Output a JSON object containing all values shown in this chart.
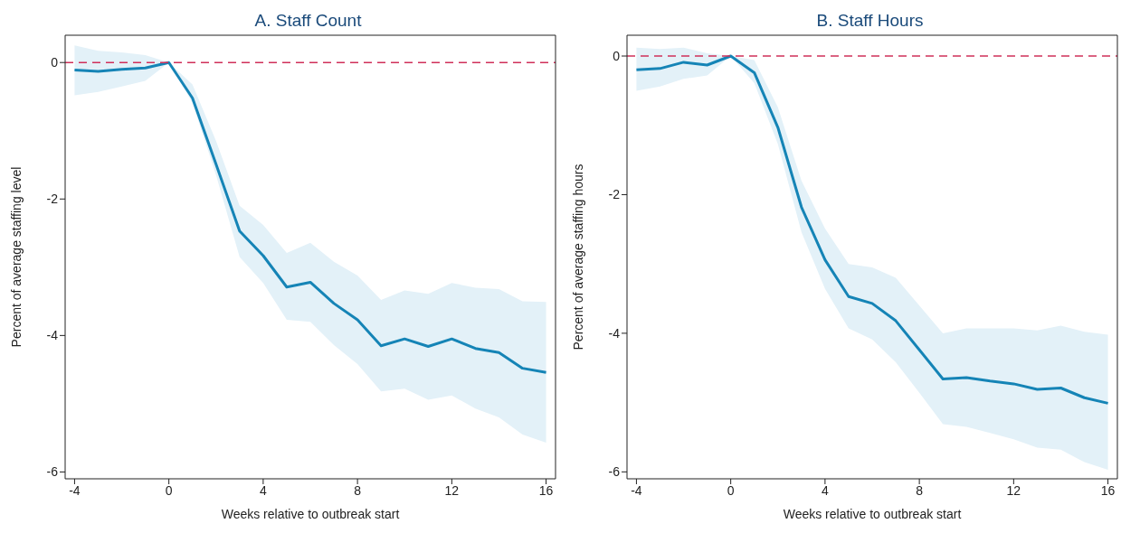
{
  "chart_data": [
    {
      "type": "line",
      "title": "A. Staff Count",
      "xlabel": "Weeks relative to outbreak start",
      "ylabel": "Percent of average staffing level",
      "x": [
        -4,
        -3,
        -2,
        -1,
        0,
        1,
        2,
        3,
        4,
        5,
        6,
        7,
        8,
        9,
        10,
        11,
        12,
        13,
        14,
        15,
        16
      ],
      "xlim": [
        -4.4,
        16.4
      ],
      "xticks": [
        -4,
        0,
        4,
        8,
        12,
        16
      ],
      "ylim": [
        -6.1,
        0.4
      ],
      "yticks": [
        -6,
        -4,
        -2,
        0
      ],
      "marker": "none",
      "line_style": "solid",
      "series": [
        {
          "color": "#1584b6",
          "values": [
            -0.11,
            -0.13,
            -0.1,
            -0.08,
            0,
            -0.52,
            -1.49,
            -2.47,
            -2.83,
            -3.29,
            -3.22,
            -3.53,
            -3.77,
            -4.15,
            -4.05,
            -4.16,
            -4.05,
            -4.19,
            -4.25,
            -4.48,
            -4.54
          ],
          "lower": [
            -0.48,
            -0.43,
            -0.35,
            -0.27,
            0,
            -0.59,
            -1.65,
            -2.85,
            -3.23,
            -3.77,
            -3.8,
            -4.14,
            -4.42,
            -4.82,
            -4.78,
            -4.94,
            -4.88,
            -5.07,
            -5.2,
            -5.45,
            -5.57
          ],
          "upper": [
            0.25,
            0.17,
            0.15,
            0.11,
            0,
            -0.32,
            -1.15,
            -2.1,
            -2.38,
            -2.79,
            -2.64,
            -2.92,
            -3.12,
            -3.48,
            -3.34,
            -3.39,
            -3.23,
            -3.3,
            -3.32,
            -3.5,
            -3.51
          ]
        }
      ],
      "ref_lines": [
        {
          "axis": "y",
          "value": 0,
          "color": "#d0305a",
          "line_style": "dashed"
        }
      ]
    },
    {
      "type": "line",
      "title": "B. Staff Hours",
      "xlabel": "Weeks relative to outbreak start",
      "ylabel": "Percent of average staffing hours",
      "x": [
        -4,
        -3,
        -2,
        -1,
        0,
        1,
        2,
        3,
        4,
        5,
        6,
        7,
        8,
        9,
        10,
        11,
        12,
        13,
        14,
        15,
        16
      ],
      "xlim": [
        -4.4,
        16.4
      ],
      "xticks": [
        -4,
        0,
        4,
        8,
        12,
        16
      ],
      "ylim": [
        -6.1,
        0.3
      ],
      "yticks": [
        -6,
        -4,
        -2,
        0
      ],
      "marker": "none",
      "line_style": "solid",
      "series": [
        {
          "color": "#1584b6",
          "values": [
            -0.2,
            -0.18,
            -0.09,
            -0.13,
            0,
            -0.24,
            -1.03,
            -2.18,
            -2.94,
            -3.47,
            -3.57,
            -3.82,
            -4.24,
            -4.66,
            -4.64,
            -4.69,
            -4.73,
            -4.81,
            -4.79,
            -4.93,
            -5.01
          ],
          "lower": [
            -0.5,
            -0.44,
            -0.33,
            -0.28,
            0,
            -0.39,
            -1.27,
            -2.54,
            -3.36,
            -3.93,
            -4.09,
            -4.42,
            -4.86,
            -5.31,
            -5.35,
            -5.44,
            -5.53,
            -5.65,
            -5.68,
            -5.86,
            -5.97
          ],
          "upper": [
            0.12,
            0.1,
            0.12,
            0.04,
            0,
            -0.06,
            -0.74,
            -1.8,
            -2.49,
            -3,
            -3.05,
            -3.2,
            -3.6,
            -4,
            -3.93,
            -3.93,
            -3.93,
            -3.96,
            -3.89,
            -3.98,
            -4.02
          ]
        }
      ],
      "ref_lines": [
        {
          "axis": "y",
          "value": 0,
          "color": "#d0305a",
          "line_style": "dashed"
        }
      ]
    }
  ]
}
